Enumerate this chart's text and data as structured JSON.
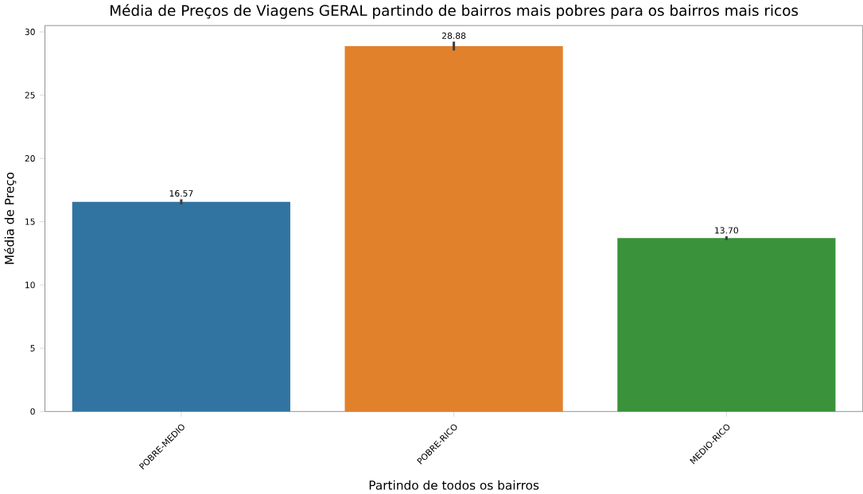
{
  "chart_data": {
    "type": "bar",
    "title": "Média de Preços de Viagens GERAL partindo de bairros mais pobres para os bairros mais ricos",
    "xlabel": "Partindo de todos os bairros",
    "ylabel": "Média de Preço",
    "categories": [
      "POBRE-MEDIO",
      "POBRE-RICO",
      "MEDIO-RICO"
    ],
    "values": [
      16.57,
      28.88,
      13.7
    ],
    "value_labels": [
      "16.57",
      "28.88",
      "13.70"
    ],
    "errors": [
      0.2,
      0.35,
      0.15
    ],
    "colors": [
      "#3274a1",
      "#e1812c",
      "#3a923a"
    ],
    "ylim": [
      0,
      30.5
    ],
    "yticks": [
      0,
      5,
      10,
      15,
      20,
      25,
      30
    ]
  }
}
